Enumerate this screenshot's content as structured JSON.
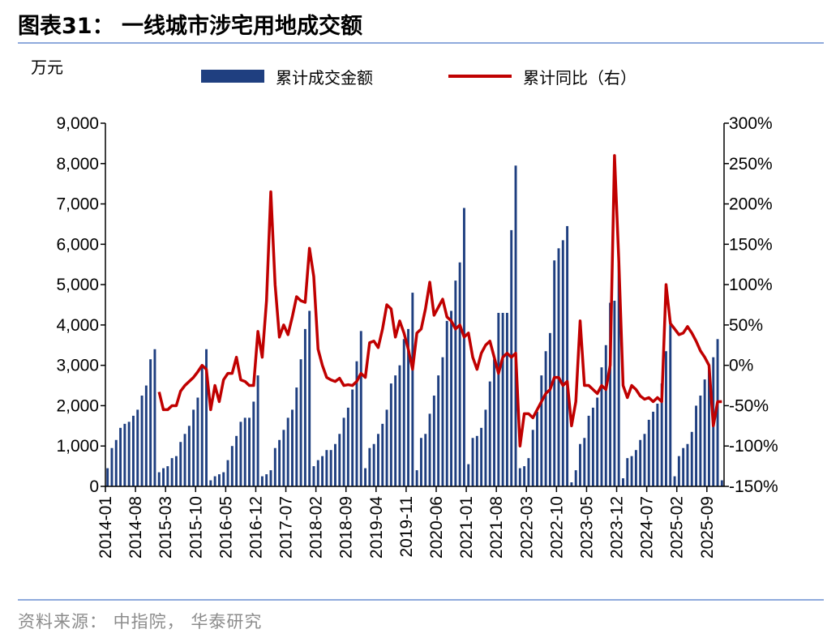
{
  "title": "图表31：  一线城市涉宅用地成交额",
  "source": "资料来源：  中指院，  华泰研究",
  "chart_data": {
    "type": "bar+line",
    "y_left_unit": "万元",
    "y_left_ticks": [
      "0",
      "1,000",
      "2,000",
      "3,000",
      "4,000",
      "5,000",
      "6,000",
      "7,000",
      "8,000",
      "9,000"
    ],
    "y_right_ticks": [
      "-150%",
      "-100%",
      "-50%",
      "0%",
      "50%",
      "100%",
      "150%",
      "200%",
      "250%",
      "300%"
    ],
    "ylim_left": [
      0,
      9000
    ],
    "ylim_right": [
      -150,
      300
    ],
    "x_tick_labels": [
      "2014-01",
      "2014-08",
      "2015-03",
      "2015-10",
      "2016-05",
      "2016-12",
      "2017-07",
      "2018-02",
      "2018-09",
      "2019-04",
      "2019-11",
      "2020-06",
      "2021-01",
      "2021-08",
      "2022-03",
      "2022-10",
      "2023-05",
      "2023-12",
      "2024-07",
      "2025-02",
      "2025-09"
    ],
    "x_start": "2014-01",
    "x_end": "2025-12",
    "legend": [
      {
        "name": "累计成交金额",
        "type": "bar",
        "color": "#1f3f80"
      },
      {
        "name": "累计同比（右）",
        "type": "line",
        "color": "#c00000"
      }
    ],
    "series": [
      {
        "name": "累计成交金额",
        "axis": "left",
        "color": "#1f3f80",
        "values": [
          450,
          950,
          1150,
          1450,
          1550,
          1600,
          1750,
          1900,
          2250,
          2500,
          3150,
          3400,
          350,
          450,
          500,
          700,
          750,
          1100,
          1300,
          1500,
          1900,
          2200,
          2950,
          3400,
          150,
          250,
          300,
          350,
          650,
          1000,
          1250,
          1600,
          1700,
          1700,
          2100,
          2750,
          250,
          300,
          400,
          950,
          1150,
          1400,
          1700,
          1900,
          2450,
          3150,
          3900,
          4350,
          500,
          650,
          750,
          900,
          900,
          1050,
          1300,
          1700,
          1950,
          2400,
          3100,
          3850,
          450,
          950,
          1050,
          1300,
          1550,
          1900,
          2550,
          2750,
          3000,
          3650,
          3900,
          4800,
          400,
          1200,
          1300,
          1800,
          2250,
          2750,
          3200,
          4100,
          4350,
          5100,
          5550,
          6900,
          550,
          1200,
          1250,
          1450,
          1900,
          2600,
          3150,
          4300,
          4300,
          4300,
          6350,
          7950,
          450,
          500,
          700,
          1400,
          1850,
          2750,
          3350,
          3800,
          5600,
          5900,
          6100,
          6450,
          100,
          400,
          1050,
          1200,
          1750,
          1950,
          2200,
          2950,
          3500,
          4550,
          4600,
          5500,
          200,
          700,
          750,
          900,
          1150,
          1300,
          1650,
          1850,
          2050,
          2550,
          3350,
          4100,
          250,
          750,
          950,
          1050,
          1350,
          2000,
          2250,
          2650,
          2950,
          3200,
          3650,
          150
        ]
      },
      {
        "name": "累计同比（右）",
        "axis": "right",
        "color": "#c00000",
        "values": [
          null,
          null,
          null,
          null,
          null,
          null,
          null,
          null,
          null,
          null,
          null,
          null,
          -33,
          -55,
          -55,
          -50,
          -50,
          -32,
          -25,
          -20,
          -15,
          -8,
          0,
          -5,
          -55,
          -25,
          -45,
          -18,
          -10,
          -10,
          10,
          -18,
          -20,
          -25,
          -25,
          42,
          10,
          80,
          215,
          100,
          35,
          50,
          38,
          60,
          85,
          80,
          78,
          145,
          110,
          20,
          0,
          -15,
          -18,
          -20,
          -16,
          -25,
          -24,
          -25,
          -20,
          -10,
          -15,
          28,
          30,
          22,
          45,
          75,
          70,
          35,
          55,
          40,
          20,
          -5,
          40,
          45,
          70,
          103,
          62,
          72,
          82,
          60,
          55,
          45,
          50,
          35,
          40,
          10,
          -5,
          15,
          25,
          30,
          10,
          -10,
          10,
          15,
          10,
          15,
          -100,
          -60,
          -60,
          -65,
          -55,
          -45,
          -35,
          -30,
          -15,
          -15,
          -25,
          -20,
          -75,
          -45,
          55,
          -25,
          -25,
          -30,
          -35,
          -25,
          -30,
          0,
          260,
          130,
          -25,
          -40,
          -25,
          -30,
          -38,
          -42,
          -40,
          -45,
          -40,
          -45,
          100,
          52,
          45,
          38,
          40,
          48,
          40,
          30,
          18,
          10,
          0,
          -75,
          -45,
          -45
        ]
      }
    ]
  }
}
